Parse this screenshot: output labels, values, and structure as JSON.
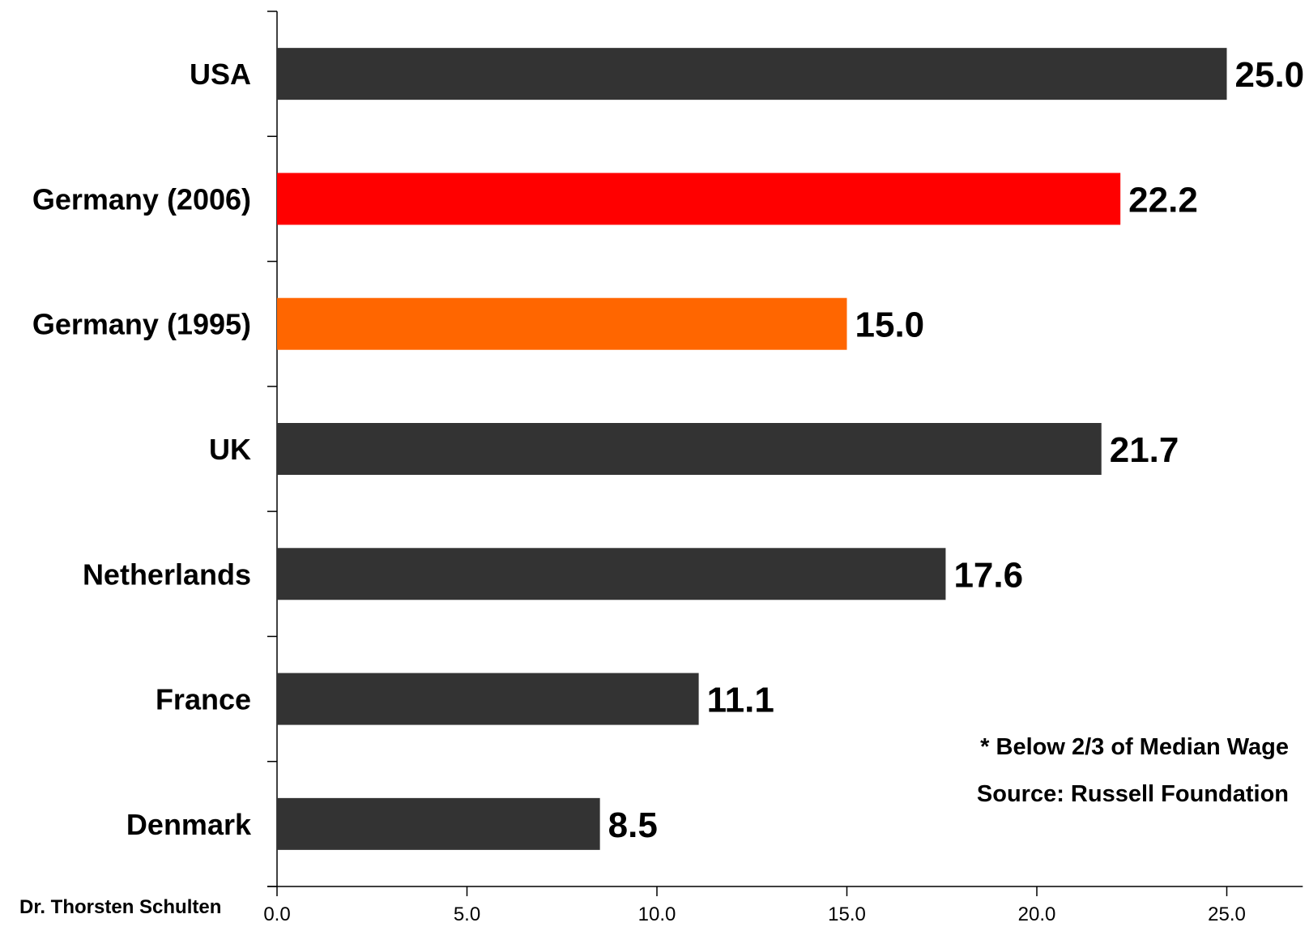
{
  "colors": {
    "default_bar": "#333333",
    "highlight_2006": "#ff0000",
    "highlight_1995": "#ff6600"
  },
  "chart_data": {
    "type": "bar",
    "orientation": "horizontal",
    "categories": [
      "USA",
      "Germany (2006)",
      "Germany (1995)",
      "UK",
      "Netherlands",
      "France",
      "Denmark"
    ],
    "values": [
      25.0,
      22.2,
      15.0,
      21.7,
      17.6,
      11.1,
      8.5
    ],
    "value_labels": [
      "25.0",
      "22.2",
      "15.0",
      "21.7",
      "17.6",
      "11.1",
      "8.5"
    ],
    "bar_colors": [
      "#333333",
      "#ff0000",
      "#ff6600",
      "#333333",
      "#333333",
      "#333333",
      "#333333"
    ],
    "x_ticks": [
      "0.0",
      "5.0",
      "10.0",
      "15.0",
      "20.0",
      "25.0"
    ],
    "xlim": [
      0,
      27
    ],
    "grid": false,
    "title": "",
    "xlabel": "",
    "ylabel": ""
  },
  "notes": {
    "footnote": "* Below 2/3 of Median Wage",
    "source": "Source: Russell Foundation"
  },
  "author": "Dr. Thorsten Schulten"
}
